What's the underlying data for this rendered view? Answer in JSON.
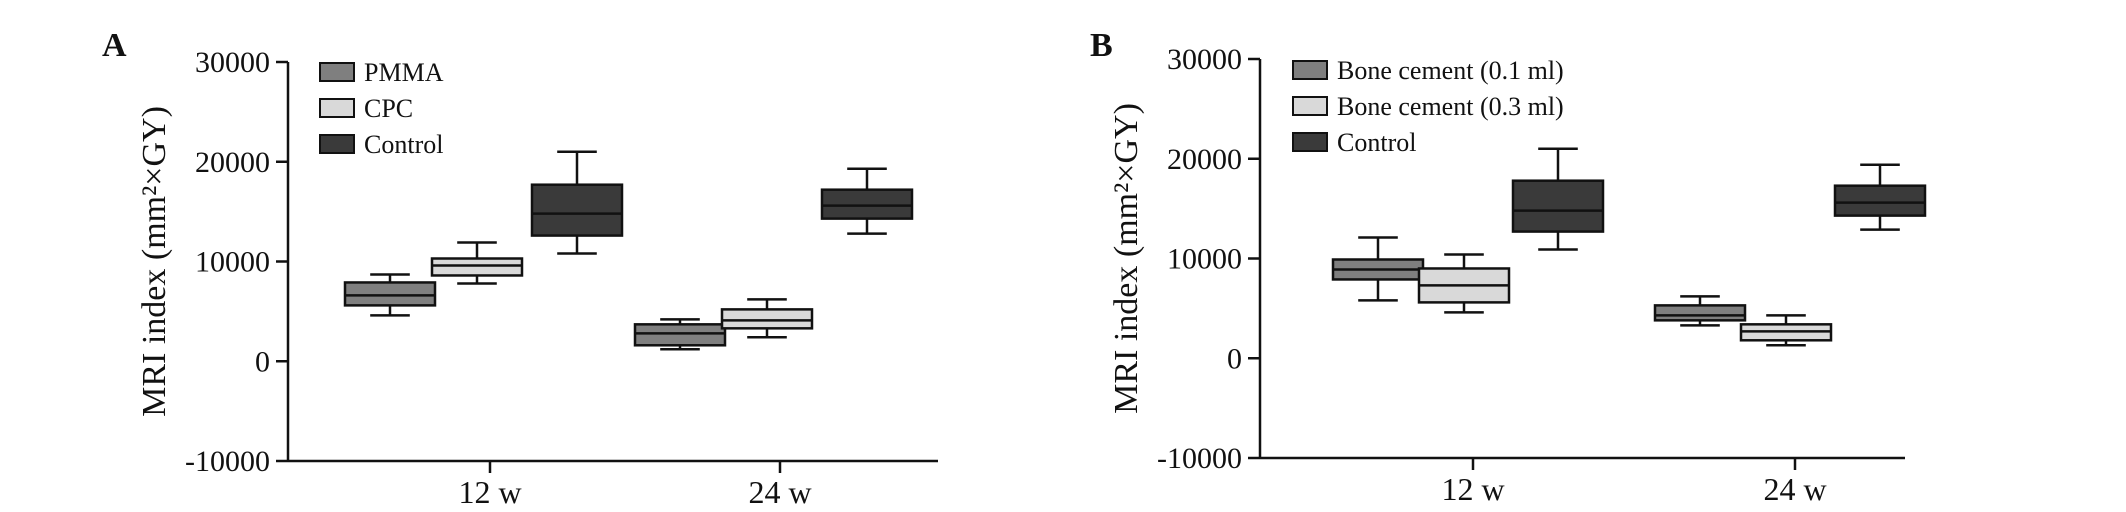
{
  "figure": {
    "background": "#ffffff"
  },
  "chart_data": [
    {
      "panel": "A",
      "type": "boxplot",
      "ylabel": "MRI index (mm²×GY)",
      "ylim": [
        -10000,
        30000
      ],
      "yticks": [
        -10000,
        0,
        10000,
        20000,
        30000
      ],
      "categories": [
        "12 w",
        "24 w"
      ],
      "legend_position": "top-left",
      "series": [
        {
          "name": "PMMA",
          "color": "#7f7f7f",
          "boxes": [
            {
              "min": 4600,
              "q1": 5600,
              "median": 6600,
              "q3": 7900,
              "max": 8700
            },
            {
              "min": 1200,
              "q1": 1600,
              "median": 2800,
              "q3": 3700,
              "max": 4200
            }
          ]
        },
        {
          "name": "CPC",
          "color": "#d9d9d9",
          "boxes": [
            {
              "min": 7800,
              "q1": 8600,
              "median": 9600,
              "q3": 10300,
              "max": 11900
            },
            {
              "min": 2400,
              "q1": 3300,
              "median": 4100,
              "q3": 5200,
              "max": 6200
            }
          ]
        },
        {
          "name": "Control",
          "color": "#3a3a3a",
          "boxes": [
            {
              "min": 10800,
              "q1": 12600,
              "median": 14800,
              "q3": 17700,
              "max": 21000
            },
            {
              "min": 12800,
              "q1": 14300,
              "median": 15600,
              "q3": 17200,
              "max": 19300
            }
          ]
        }
      ]
    },
    {
      "panel": "B",
      "type": "boxplot",
      "ylabel": "MRI index (mm²×GY)",
      "ylim": [
        -10000,
        30000
      ],
      "yticks": [
        -10000,
        0,
        10000,
        20000,
        30000
      ],
      "categories": [
        "12 w",
        "24 w"
      ],
      "legend_position": "top-left",
      "series": [
        {
          "name": "Bone cement (0.1 ml)",
          "color": "#7f7f7f",
          "boxes": [
            {
              "min": 5800,
              "q1": 7900,
              "median": 8900,
              "q3": 9900,
              "max": 12100
            },
            {
              "min": 3300,
              "q1": 3800,
              "median": 4300,
              "q3": 5300,
              "max": 6200
            }
          ]
        },
        {
          "name": "Bone cement (0.3 ml)",
          "color": "#d9d9d9",
          "boxes": [
            {
              "min": 4600,
              "q1": 5600,
              "median": 7300,
              "q3": 9000,
              "max": 10400
            },
            {
              "min": 1300,
              "q1": 1800,
              "median": 2700,
              "q3": 3400,
              "max": 4300
            }
          ]
        },
        {
          "name": "Control",
          "color": "#3a3a3a",
          "boxes": [
            {
              "min": 10900,
              "q1": 12700,
              "median": 14800,
              "q3": 17800,
              "max": 21000
            },
            {
              "min": 12900,
              "q1": 14300,
              "median": 15600,
              "q3": 17300,
              "max": 19400
            }
          ]
        }
      ]
    }
  ]
}
